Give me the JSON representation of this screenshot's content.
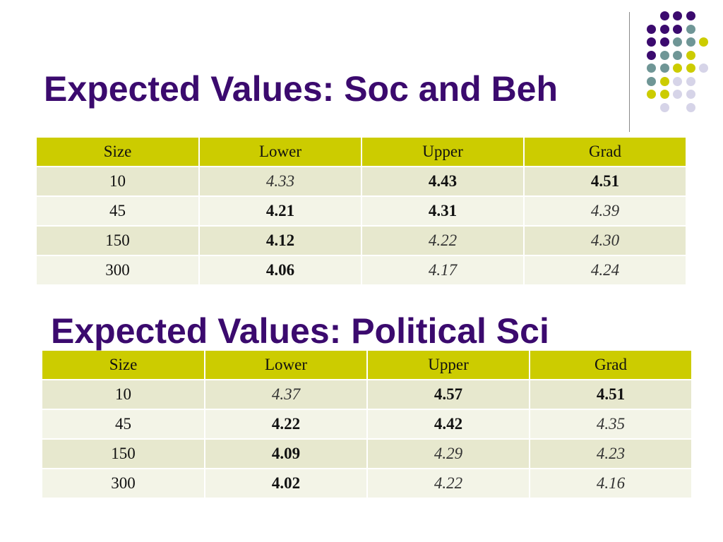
{
  "slide": {
    "title1": "Expected Values: Soc and Beh",
    "title2": "Expected Values: Political Sci",
    "accent_colors": {
      "title": "#3b0a6e",
      "header_fill": "#cccc00",
      "row_odd": "#e7e8ce",
      "row_even": "#f3f4e7",
      "dot_purple": "#3b0a6e",
      "dot_teal": "#6f9696",
      "dot_yellow": "#cccc00",
      "dot_lavender": "#d6d4e8"
    }
  },
  "table1": {
    "headers": [
      "Size",
      "Lower",
      "Upper",
      "Grad"
    ],
    "rows": [
      [
        "10",
        "4.33",
        "4.43",
        "4.51"
      ],
      [
        "45",
        "4.21",
        "4.31",
        "4.39"
      ],
      [
        "150",
        "4.12",
        "4.22",
        "4.30"
      ],
      [
        "300",
        "4.06",
        "4.17",
        "4.24"
      ]
    ]
  },
  "table2": {
    "headers": [
      "Size",
      "Lower",
      "Upper",
      "Grad"
    ],
    "rows": [
      [
        "10",
        "4.37",
        "4.57",
        "4.51"
      ],
      [
        "45",
        "4.22",
        "4.42",
        "4.35"
      ],
      [
        "150",
        "4.09",
        "4.29",
        "4.23"
      ],
      [
        "300",
        "4.02",
        "4.22",
        "4.16"
      ]
    ]
  }
}
